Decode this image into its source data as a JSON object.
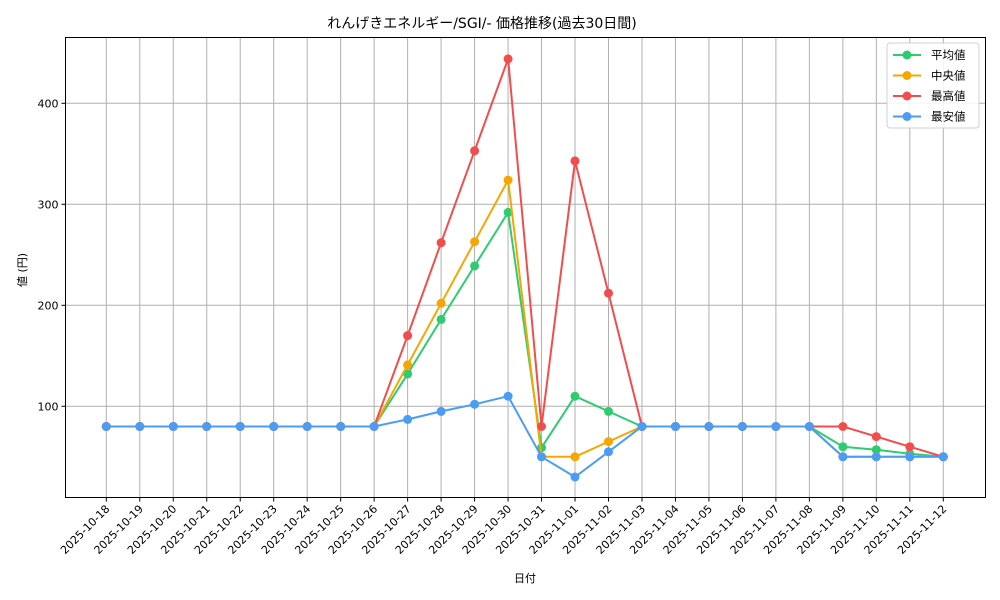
{
  "chart_data": {
    "type": "line",
    "title": "れんげきエネルギー/SGI/- 価格推移(過去30日間)",
    "xlabel": "日付",
    "ylabel": "値 (円)",
    "ylim": [
      10,
      465
    ],
    "yticks": [
      100,
      200,
      300,
      400
    ],
    "grid": true,
    "legend_position": "upper right",
    "categories": [
      "2025-10-18",
      "2025-10-19",
      "2025-10-20",
      "2025-10-21",
      "2025-10-22",
      "2025-10-23",
      "2025-10-24",
      "2025-10-25",
      "2025-10-26",
      "2025-10-27",
      "2025-10-28",
      "2025-10-29",
      "2025-10-30",
      "2025-10-31",
      "2025-11-01",
      "2025-11-02",
      "2025-11-03",
      "2025-11-04",
      "2025-11-05",
      "2025-11-06",
      "2025-11-07",
      "2025-11-08",
      "2025-11-09",
      "2025-11-10",
      "2025-11-11",
      "2025-11-12"
    ],
    "series": [
      {
        "name": "平均値",
        "color": "#2ecc71",
        "values": [
          80,
          80,
          80,
          80,
          80,
          80,
          80,
          80,
          80,
          132,
          186,
          239,
          292,
          59,
          110,
          95,
          80,
          80,
          80,
          80,
          80,
          80,
          60,
          57,
          53,
          50
        ]
      },
      {
        "name": "中央値",
        "color": "#f5a700",
        "values": [
          80,
          80,
          80,
          80,
          80,
          80,
          80,
          80,
          80,
          141,
          202,
          263,
          324,
          50,
          50,
          65,
          80,
          80,
          80,
          80,
          80,
          80,
          50,
          50,
          50,
          50
        ]
      },
      {
        "name": "最高値",
        "color": "#f24d4d",
        "values": [
          80,
          80,
          80,
          80,
          80,
          80,
          80,
          80,
          80,
          170,
          262,
          353,
          444,
          80,
          343,
          212,
          80,
          80,
          80,
          80,
          80,
          80,
          80,
          70,
          60,
          50
        ]
      },
      {
        "name": "最安値",
        "color": "#4a9cf5",
        "values": [
          80,
          80,
          80,
          80,
          80,
          80,
          80,
          80,
          80,
          87,
          95,
          102,
          110,
          50,
          30,
          55,
          80,
          80,
          80,
          80,
          80,
          80,
          50,
          50,
          50,
          50
        ]
      }
    ]
  }
}
